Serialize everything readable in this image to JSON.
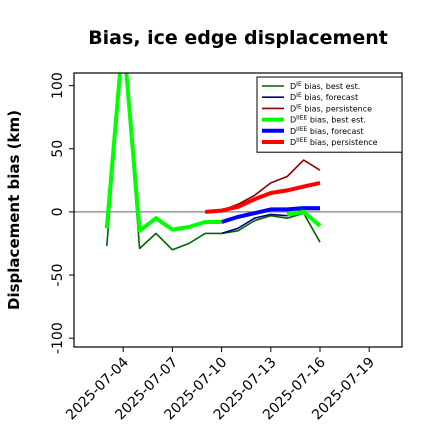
{
  "chart_data": {
    "type": "line",
    "title": "Bias, ice edge displacement",
    "ylabel": "Displacement bias (km)",
    "xlabel": "",
    "ylim": [
      -107,
      110
    ],
    "xlim": [
      "2025-07-01",
      "2025-07-21"
    ],
    "yticks": [
      100,
      50,
      0,
      -50,
      -100
    ],
    "xticks": [
      "2025-07-04",
      "2025-07-07",
      "2025-07-10",
      "2025-07-13",
      "2025-07-16",
      "2025-07-19"
    ],
    "highlight_tick": "2025-07-10",
    "highlight_color": "#228b22",
    "zero_line": true,
    "grid": false,
    "legend_position": "top-right",
    "series": [
      {
        "name": "D^IE bias, best est.",
        "color": "#006400",
        "width": 1.6,
        "x": [
          "2025-07-03",
          "2025-07-04",
          "2025-07-05",
          "2025-07-06",
          "2025-07-07",
          "2025-07-08",
          "2025-07-09",
          "2025-07-10",
          "2025-07-11",
          "2025-07-12",
          "2025-07-13",
          "2025-07-14",
          "2025-07-15",
          "2025-07-16"
        ],
        "y": [
          -27,
          135,
          -29,
          -17,
          -30,
          -25,
          -17,
          -17,
          -15,
          -7,
          -3,
          -5,
          -1,
          -24
        ]
      },
      {
        "name": "D^IE bias, forecast",
        "color": "#00008b",
        "width": 1.6,
        "x": [
          "2025-07-10",
          "2025-07-11",
          "2025-07-12",
          "2025-07-13",
          "2025-07-14",
          "2025-07-15",
          "2025-07-16"
        ],
        "y": [
          -17,
          -13,
          -5,
          -2,
          -3,
          2,
          2
        ]
      },
      {
        "name": "D^IE bias, persistence",
        "color": "#8b0000",
        "width": 1.6,
        "x": [
          "2025-07-09",
          "2025-07-10",
          "2025-07-11",
          "2025-07-12",
          "2025-07-13",
          "2025-07-14",
          "2025-07-15",
          "2025-07-16"
        ],
        "y": [
          0,
          1,
          6,
          13,
          23,
          28,
          41,
          33
        ]
      },
      {
        "name": "D^IIEE bias, best est.",
        "color": "#00ff00",
        "width": 4,
        "x": [
          "2025-07-03",
          "2025-07-04",
          "2025-07-05",
          "2025-07-06",
          "2025-07-07",
          "2025-07-08",
          "2025-07-09",
          "2025-07-10"
        ],
        "y": [
          -13,
          140,
          -15,
          -5,
          -14,
          -12,
          -8,
          -8
        ]
      },
      {
        "name": "D^IIEE bias, forecast",
        "color": "#0000ff",
        "width": 4,
        "x": [
          "2025-07-10",
          "2025-07-11",
          "2025-07-12",
          "2025-07-13",
          "2025-07-14",
          "2025-07-15",
          "2025-07-16"
        ],
        "y": [
          -8,
          -4,
          -1,
          2,
          2,
          3,
          3
        ]
      },
      {
        "name": "D^IIEE bias, persistence",
        "color": "#ff0000",
        "width": 4,
        "x": [
          "2025-07-09",
          "2025-07-10",
          "2025-07-11",
          "2025-07-12",
          "2025-07-13",
          "2025-07-14",
          "2025-07-15",
          "2025-07-16"
        ],
        "y": [
          0,
          1,
          4,
          10,
          15,
          17,
          20,
          23
        ]
      }
    ],
    "extra_segments": [
      {
        "color": "#00ff00",
        "width": 4,
        "x": [
          "2025-07-14",
          "2025-07-15",
          "2025-07-16"
        ],
        "y": [
          -2,
          0,
          -11
        ]
      }
    ]
  }
}
